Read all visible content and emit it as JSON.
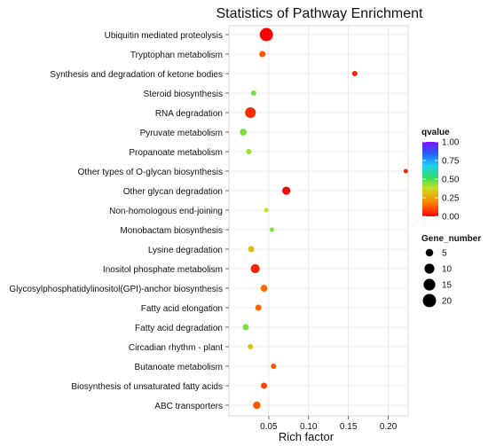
{
  "chart_data": {
    "type": "scatter",
    "title": "Statistics of Pathway Enrichment",
    "xlabel": "Rich factor",
    "ylabel": "",
    "xlim": [
      0.0,
      0.225
    ],
    "xticks": [
      0.05,
      0.1,
      0.15,
      0.2
    ],
    "xtick_labels": [
      "0.05",
      "0.10",
      "0.15",
      "0.20"
    ],
    "grid": true,
    "legend_position": "right",
    "color_legend": {
      "title": "qvalue",
      "range": [
        0.0,
        1.0
      ],
      "ticks": [
        "1.00",
        "0.75",
        "0.50",
        "0.25",
        "0.00"
      ],
      "gradient_colors": [
        "#ff0000",
        "#ff8000",
        "#c8e020",
        "#30e060",
        "#20d0f0",
        "#2060ff",
        "#8010ff"
      ]
    },
    "size_legend": {
      "title": "Gene_number",
      "entries": [
        5,
        10,
        15,
        20
      ]
    },
    "categories": [
      "Ubiquitin mediated proteolysis",
      "Tryptophan metabolism",
      "Synthesis and degradation of ketone bodies",
      "Steroid biosynthesis",
      "RNA degradation",
      "Pyruvate metabolism",
      "Propanoate metabolism",
      "Other types of O-glycan biosynthesis",
      "Other glycan degradation",
      "Non-homologous end-joining",
      "Monobactam biosynthesis",
      "Lysine degradation",
      "Inositol phosphate metabolism",
      "Glycosylphosphatidylinositol(GPI)-anchor biosynthesis",
      "Fatty acid elongation",
      "Fatty acid degradation",
      "Circadian rhythm - plant",
      "Butanoate metabolism",
      "Biosynthesis of unsaturated fatty acids",
      "ABC transporters"
    ],
    "points": [
      {
        "y": "Ubiquitin mediated proteolysis",
        "x": 0.047,
        "gene_number": 20,
        "qvalue": 0.0
      },
      {
        "y": "Tryptophan metabolism",
        "x": 0.042,
        "gene_number": 3,
        "qvalue": 0.12
      },
      {
        "y": "Synthesis and degradation of ketone bodies",
        "x": 0.158,
        "gene_number": 2,
        "qvalue": 0.05
      },
      {
        "y": "Steroid biosynthesis",
        "x": 0.031,
        "gene_number": 2,
        "qvalue": 0.45
      },
      {
        "y": "RNA degradation",
        "x": 0.027,
        "gene_number": 12,
        "qvalue": 0.06
      },
      {
        "y": "Pyruvate metabolism",
        "x": 0.018,
        "gene_number": 4,
        "qvalue": 0.45
      },
      {
        "y": "Propanoate metabolism",
        "x": 0.025,
        "gene_number": 2,
        "qvalue": 0.42
      },
      {
        "y": "Other types of O-glycan biosynthesis",
        "x": 0.222,
        "gene_number": 1,
        "qvalue": 0.05
      },
      {
        "y": "Other glycan degradation",
        "x": 0.072,
        "gene_number": 6,
        "qvalue": 0.0
      },
      {
        "y": "Non-homologous end-joining",
        "x": 0.047,
        "gene_number": 1,
        "qvalue": 0.38
      },
      {
        "y": "Monobactam biosynthesis",
        "x": 0.054,
        "gene_number": 1,
        "qvalue": 0.45
      },
      {
        "y": "Lysine degradation",
        "x": 0.028,
        "gene_number": 3,
        "qvalue": 0.3
      },
      {
        "y": "Inositol phosphate metabolism",
        "x": 0.033,
        "gene_number": 8,
        "qvalue": 0.05
      },
      {
        "y": "Glycosylphosphatidylinositol(GPI)-anchor biosynthesis",
        "x": 0.044,
        "gene_number": 4,
        "qvalue": 0.15
      },
      {
        "y": "Fatty acid elongation",
        "x": 0.037,
        "gene_number": 3,
        "qvalue": 0.15
      },
      {
        "y": "Fatty acid degradation",
        "x": 0.021,
        "gene_number": 3,
        "qvalue": 0.45
      },
      {
        "y": "Circadian rhythm - plant",
        "x": 0.027,
        "gene_number": 2,
        "qvalue": 0.32
      },
      {
        "y": "Butanoate metabolism",
        "x": 0.056,
        "gene_number": 2,
        "qvalue": 0.12
      },
      {
        "y": "Biosynthesis of unsaturated fatty acids",
        "x": 0.044,
        "gene_number": 3,
        "qvalue": 0.1
      },
      {
        "y": "ABC transporters",
        "x": 0.035,
        "gene_number": 5,
        "qvalue": 0.12
      }
    ]
  }
}
